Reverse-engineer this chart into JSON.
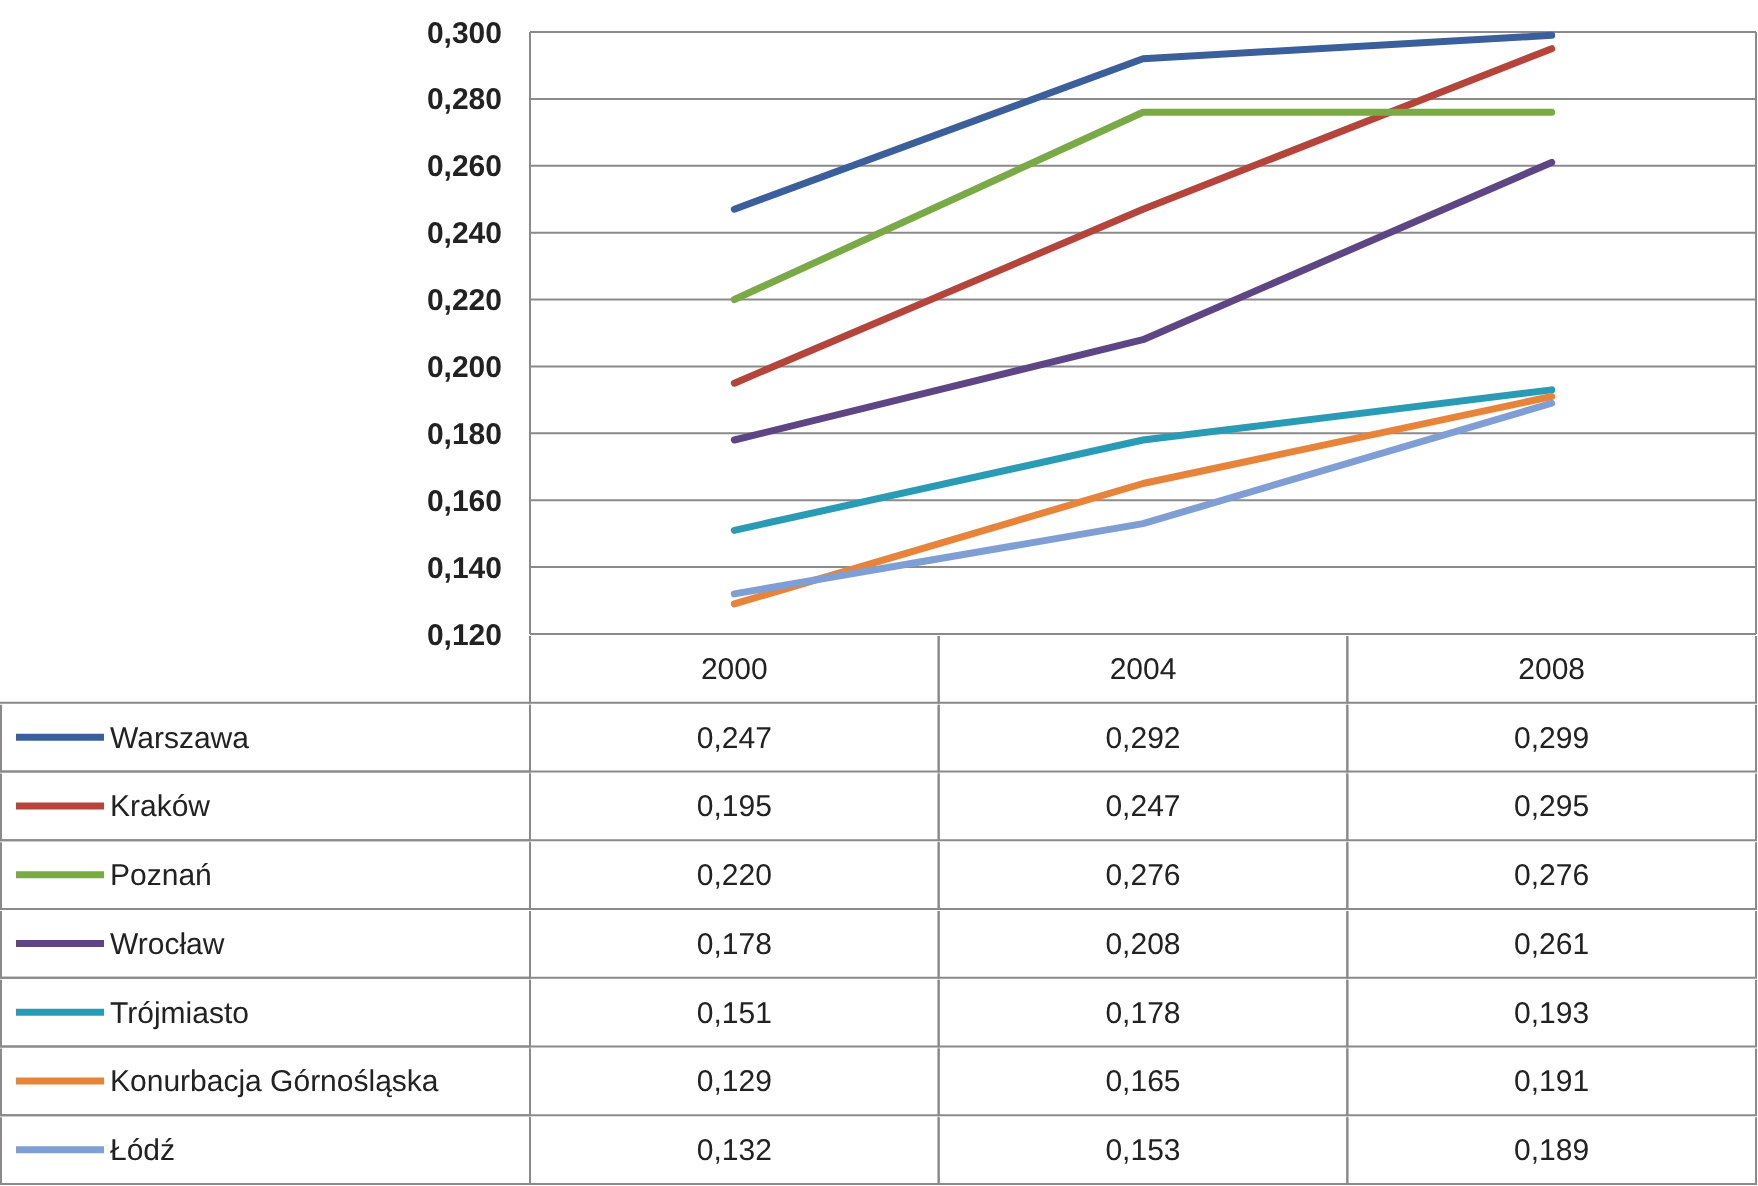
{
  "chart_data": {
    "type": "line",
    "categories": [
      "2000",
      "2004",
      "2008"
    ],
    "ylim": [
      0.12,
      0.3
    ],
    "yticks": [
      {
        "value": 0.12,
        "label": "0,120"
      },
      {
        "value": 0.14,
        "label": "0,140"
      },
      {
        "value": 0.16,
        "label": "0,160"
      },
      {
        "value": 0.18,
        "label": "0,180"
      },
      {
        "value": 0.2,
        "label": "0,200"
      },
      {
        "value": 0.22,
        "label": "0,220"
      },
      {
        "value": 0.24,
        "label": "0,240"
      },
      {
        "value": 0.26,
        "label": "0,260"
      },
      {
        "value": 0.28,
        "label": "0,280"
      },
      {
        "value": 0.3,
        "label": "0,300"
      }
    ],
    "grid": "y",
    "legend": "bottom left",
    "marker": "none",
    "line_style": "solid",
    "series": [
      {
        "name": "Warszawa",
        "color": "#3a5f9a",
        "values": [
          0.247,
          0.292,
          0.299
        ],
        "value_labels": [
          "0,247",
          "0,292",
          "0,299"
        ]
      },
      {
        "name": "Kraków",
        "color": "#b5443b",
        "values": [
          0.195,
          0.247,
          0.295
        ],
        "value_labels": [
          "0,195",
          "0,247",
          "0,295"
        ]
      },
      {
        "name": "Poznań",
        "color": "#7aaa45",
        "values": [
          0.22,
          0.276,
          0.276
        ],
        "value_labels": [
          "0,220",
          "0,276",
          "0,276"
        ]
      },
      {
        "name": "Wrocław",
        "color": "#5e4685",
        "values": [
          0.178,
          0.208,
          0.261
        ],
        "value_labels": [
          "0,178",
          "0,208",
          "0,261"
        ]
      },
      {
        "name": "Trójmiasto",
        "color": "#2a9bb5",
        "values": [
          0.151,
          0.178,
          0.193
        ],
        "value_labels": [
          "0,151",
          "0,178",
          "0,193"
        ]
      },
      {
        "name": "Konurbacja Górnośląska",
        "color": "#e8843a",
        "values": [
          0.129,
          0.165,
          0.191
        ],
        "value_labels": [
          "0,129",
          "0,165",
          "0,191"
        ]
      },
      {
        "name": "Łódź",
        "color": "#7f9fd4",
        "values": [
          0.132,
          0.153,
          0.189
        ],
        "value_labels": [
          "0,132",
          "0,153",
          "0,189"
        ]
      }
    ]
  }
}
